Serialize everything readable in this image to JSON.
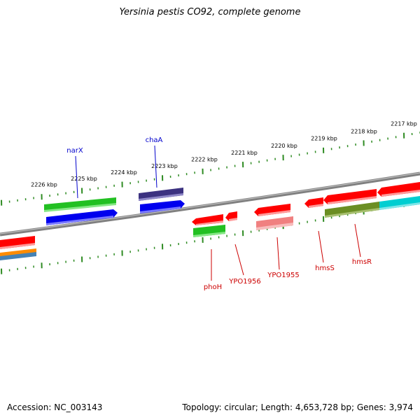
{
  "title": "Yersinia pestis CO92, complete genome",
  "footer": {
    "accession": "Accession: NC_003143",
    "stats": "Topology: circular; Length: 4,653,728 bp; Genes: 3,974"
  },
  "ruler_labels": [
    "2226 kbp",
    "2225 kbp",
    "2224 kbp",
    "2223 kbp",
    "2222 kbp",
    "2221 kbp",
    "2220 kbp",
    "2219 kbp",
    "2218 kbp",
    "2217 kbp"
  ],
  "gene_labels": {
    "forward": [
      "narX",
      "chaA"
    ],
    "reverse": [
      "phoH",
      "YPO1956",
      "YPO1955",
      "hmsS",
      "hmsR"
    ]
  },
  "colors": {
    "backbone": "#808080",
    "tick": "#2e8b22",
    "forward_label": "#0000cc",
    "reverse_label": "#cc0000",
    "red": "#ff0000",
    "green": "#22c022",
    "blue": "#0000ee",
    "indigo": "#3c3280",
    "salmon": "#f08080",
    "olive": "#6b8e23",
    "cyan": "#00ced1",
    "orange": "#ff8c00",
    "steel": "#4682b4"
  }
}
